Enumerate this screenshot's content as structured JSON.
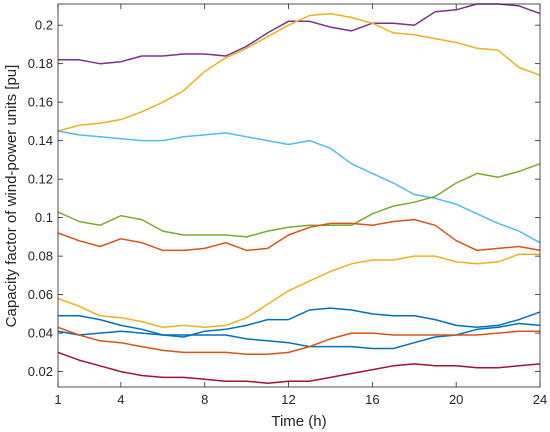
{
  "chart_data": {
    "type": "line",
    "xlabel": "Time (h)",
    "ylabel": "Capacity factor of wind-power units [pu]",
    "xlim": [
      1,
      24
    ],
    "ylim": [
      0.012,
      0.211
    ],
    "x_ticks": [
      1,
      4,
      8,
      12,
      16,
      20,
      24
    ],
    "y_ticks": [
      0.02,
      0.04,
      0.06,
      0.08,
      0.1,
      0.12,
      0.14,
      0.16,
      0.18,
      0.2
    ],
    "x_tick_labels": [
      "1",
      "4",
      "8",
      "12",
      "16",
      "20",
      "24"
    ],
    "y_tick_labels": [
      "0.02",
      "0.04",
      "0.06",
      "0.08",
      "0.1",
      "0.12",
      "0.14",
      "0.16",
      "0.18",
      "0.2"
    ],
    "grid": false,
    "x": [
      1,
      2,
      3,
      4,
      5,
      6,
      7,
      8,
      9,
      10,
      11,
      12,
      13,
      14,
      15,
      16,
      17,
      18,
      19,
      20,
      21,
      22,
      23,
      24
    ],
    "series": [
      {
        "color": "#7E2F8E",
        "values": [
          0.182,
          0.182,
          0.18,
          0.181,
          0.184,
          0.184,
          0.185,
          0.185,
          0.184,
          0.189,
          0.196,
          0.202,
          0.202,
          0.199,
          0.197,
          0.201,
          0.201,
          0.2,
          0.207,
          0.208,
          0.211,
          0.211,
          0.21,
          0.206
        ]
      },
      {
        "color": "#EDB120",
        "values": [
          0.145,
          0.148,
          0.149,
          0.151,
          0.155,
          0.16,
          0.166,
          0.176,
          0.183,
          0.188,
          0.194,
          0.2,
          0.205,
          0.206,
          0.204,
          0.201,
          0.196,
          0.195,
          0.193,
          0.191,
          0.188,
          0.187,
          0.178,
          0.174
        ]
      },
      {
        "color": "#4DBEEE",
        "values": [
          0.145,
          0.143,
          0.142,
          0.141,
          0.14,
          0.14,
          0.142,
          0.143,
          0.144,
          0.142,
          0.14,
          0.138,
          0.14,
          0.136,
          0.128,
          0.123,
          0.118,
          0.112,
          0.11,
          0.107,
          0.102,
          0.097,
          0.093,
          0.087
        ]
      },
      {
        "color": "#77AC30",
        "values": [
          0.103,
          0.098,
          0.096,
          0.101,
          0.099,
          0.093,
          0.091,
          0.091,
          0.091,
          0.09,
          0.093,
          0.095,
          0.096,
          0.096,
          0.096,
          0.102,
          0.106,
          0.108,
          0.111,
          0.118,
          0.123,
          0.121,
          0.124,
          0.128
        ]
      },
      {
        "color": "#D95319",
        "values": [
          0.092,
          0.088,
          0.085,
          0.089,
          0.087,
          0.083,
          0.083,
          0.084,
          0.087,
          0.083,
          0.084,
          0.091,
          0.095,
          0.097,
          0.097,
          0.096,
          0.098,
          0.099,
          0.096,
          0.088,
          0.083,
          0.084,
          0.085,
          0.083
        ]
      },
      {
        "color": "#EDB120",
        "values": [
          0.058,
          0.054,
          0.049,
          0.048,
          0.046,
          0.043,
          0.044,
          0.043,
          0.044,
          0.048,
          0.055,
          0.062,
          0.067,
          0.072,
          0.076,
          0.078,
          0.078,
          0.08,
          0.08,
          0.077,
          0.076,
          0.077,
          0.081,
          0.081
        ]
      },
      {
        "color": "#0072BD",
        "values": [
          0.049,
          0.049,
          0.047,
          0.044,
          0.042,
          0.039,
          0.038,
          0.041,
          0.042,
          0.044,
          0.047,
          0.047,
          0.052,
          0.053,
          0.052,
          0.05,
          0.049,
          0.049,
          0.047,
          0.044,
          0.043,
          0.044,
          0.047,
          0.051
        ]
      },
      {
        "color": "#0072BD",
        "values": [
          0.041,
          0.039,
          0.04,
          0.041,
          0.04,
          0.039,
          0.039,
          0.039,
          0.039,
          0.037,
          0.036,
          0.035,
          0.033,
          0.033,
          0.033,
          0.032,
          0.032,
          0.035,
          0.038,
          0.039,
          0.042,
          0.043,
          0.045,
          0.044
        ]
      },
      {
        "color": "#D95319",
        "values": [
          0.043,
          0.039,
          0.036,
          0.035,
          0.033,
          0.031,
          0.03,
          0.03,
          0.03,
          0.029,
          0.029,
          0.03,
          0.033,
          0.037,
          0.04,
          0.04,
          0.039,
          0.039,
          0.039,
          0.039,
          0.039,
          0.04,
          0.041,
          0.041
        ]
      },
      {
        "color": "#A2142F",
        "values": [
          0.03,
          0.026,
          0.023,
          0.02,
          0.018,
          0.017,
          0.017,
          0.016,
          0.015,
          0.015,
          0.014,
          0.015,
          0.015,
          0.017,
          0.019,
          0.021,
          0.023,
          0.024,
          0.023,
          0.023,
          0.022,
          0.022,
          0.023,
          0.024
        ]
      }
    ]
  }
}
